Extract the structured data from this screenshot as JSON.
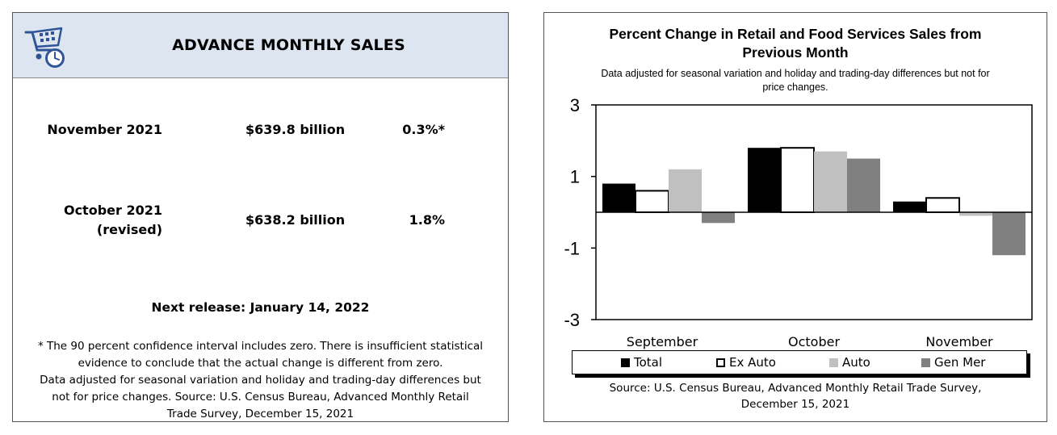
{
  "left": {
    "title": "ADVANCE MONTHLY SALES",
    "logo_icon": "shopping-cart-clock-icon",
    "rows": [
      {
        "label_line1": "November 2021",
        "label_line2": "",
        "amount": "$639.8 billion",
        "percent": "0.3%*"
      },
      {
        "label_line1": "October 2021",
        "label_line2": "(revised)",
        "amount": "$638.2 billion",
        "percent": "1.8%"
      }
    ],
    "next_release": "Next release: January 14, 2022",
    "note_lines": [
      "* The 90 percent confidence interval includes zero. There is insufficient statistical",
      "evidence to conclude that the actual change is different from zero.",
      "Data adjusted for seasonal variation and holiday and trading-day differences but",
      "not for price changes. Source: U.S. Census Bureau, Advanced Monthly Retail",
      "Trade Survey, December 15, 2021"
    ],
    "colors": {
      "header_bg": "#dde5f1",
      "logo_blue": "#2f5597"
    }
  },
  "chart_data": {
    "type": "bar",
    "title": "Percent Change in Retail and Food Services Sales from Previous Month",
    "title_lines": [
      "Percent Change in Retail and Food Services Sales from",
      "Previous Month"
    ],
    "subtitle_lines": [
      "Data adjusted for seasonal variation and holiday and trading-day differences but not for",
      "price changes."
    ],
    "categories": [
      "September",
      "October",
      "November"
    ],
    "series": [
      {
        "name": "Total",
        "values": [
          0.8,
          1.8,
          0.3
        ],
        "color": "#000000"
      },
      {
        "name": "Ex Auto",
        "values": [
          0.6,
          1.8,
          0.4
        ],
        "color": "#ffffff"
      },
      {
        "name": "Auto",
        "values": [
          1.2,
          1.7,
          -0.1
        ],
        "color": "#c0c0c0"
      },
      {
        "name": "Gen Mer",
        "values": [
          -0.3,
          1.5,
          -1.2
        ],
        "color": "#808080"
      }
    ],
    "yticks": [
      "3",
      "1",
      "-1",
      "-3"
    ],
    "ylim": [
      -3,
      3
    ],
    "grid": false,
    "legend_position": "bottom",
    "source_lines": [
      "Source: U.S. Census Bureau, Advanced Monthly Retail Trade Survey,",
      "December 15, 2021"
    ]
  }
}
